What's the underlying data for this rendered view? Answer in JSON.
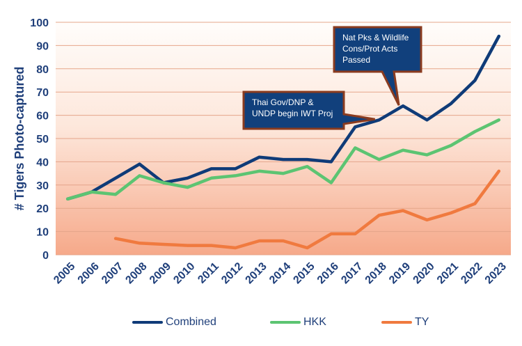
{
  "chart_data": {
    "type": "line",
    "ylabel": "# Tigers Photo-captured",
    "xlabel": "",
    "x": [
      "2005",
      "2006",
      "2007",
      "2008",
      "2009",
      "2010",
      "2011",
      "2012",
      "2013",
      "2014",
      "2015",
      "2016",
      "2017",
      "2018",
      "2019",
      "2020",
      "2021",
      "2022",
      "2023"
    ],
    "ylim": [
      0,
      100
    ],
    "yticks": [
      0,
      10,
      20,
      30,
      40,
      50,
      60,
      70,
      80,
      90,
      100
    ],
    "grid": true,
    "legend_position": "bottom",
    "series": [
      {
        "name": "Combined",
        "color": "#0f3b78",
        "values": [
          24,
          27,
          33,
          39,
          31,
          33,
          37,
          37,
          42,
          41,
          41,
          40,
          55,
          58,
          64,
          58,
          65,
          75,
          94
        ]
      },
      {
        "name": "HKK",
        "color": "#5cc472",
        "values": [
          24,
          27,
          26,
          34,
          31,
          29,
          33,
          34,
          36,
          35,
          38,
          31,
          46,
          41,
          45,
          43,
          47,
          53,
          58
        ]
      },
      {
        "name": "TY",
        "color": "#f07a3f",
        "values": [
          null,
          null,
          7,
          5,
          4.5,
          4,
          4,
          3,
          6,
          6,
          3,
          9,
          9,
          17,
          19,
          15,
          18,
          22,
          36
        ]
      }
    ],
    "annotations": [
      {
        "text": "Thai Gov/DNP &\nUNDP begin IWT Proj",
        "x": "2018",
        "y": 58
      },
      {
        "text": "Nat Pks & Wildlife\nCons/Prot Acts\nPassed",
        "x": "2019",
        "y": 64
      }
    ]
  }
}
